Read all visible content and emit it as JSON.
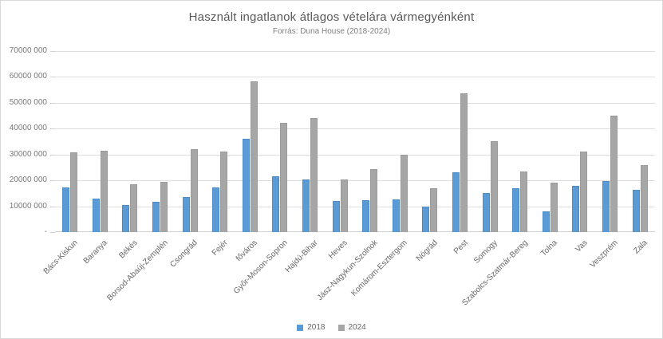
{
  "chart_data": {
    "type": "bar",
    "title": "Használt ingatlanok átlagos vételára vármegyénként",
    "subtitle": "Forrás: Duna House (2018-2024)",
    "categories": [
      "Bács-Kiskun",
      "Baranya",
      "Békés",
      "Borsod-Abaúj-Zemplén",
      "Csongrád",
      "Fejér",
      "főváros",
      "Győr-Moson-Sopron",
      "Hajdú-Bihar",
      "Heves",
      "Jász-Nagykun-Szolnok",
      "Komárom-Esztergom",
      "Nógrád",
      "Pest",
      "Somogy",
      "Szabolcs-Szatmár-Bereg",
      "Tolna",
      "Vas",
      "Veszprém",
      "Zala"
    ],
    "series": [
      {
        "name": "2018",
        "color": "#5b9bd5",
        "values": [
          17200000,
          13000000,
          10400000,
          11700000,
          13700000,
          17300000,
          36000000,
          21500000,
          20400000,
          11900000,
          12200000,
          12700000,
          10000000,
          23200000,
          15200000,
          16900000,
          8000000,
          18000000,
          19800000,
          16200000
        ]
      },
      {
        "name": "2024",
        "color": "#a6a6a6",
        "values": [
          30800000,
          31500000,
          18500000,
          19400000,
          32200000,
          31200000,
          58200000,
          42400000,
          44100000,
          20300000,
          24500000,
          30000000,
          17000000,
          53600000,
          35200000,
          23300000,
          19000000,
          31200000,
          45000000,
          26000000
        ]
      }
    ],
    "ylim": [
      0,
      70000000
    ],
    "ytick_step": 10000000,
    "ytick_labels": [
      "-",
      "10000 000",
      "20000 000",
      "30000 000",
      "40000 000",
      "50000 000",
      "60000 000",
      "70000 000"
    ],
    "grid": true,
    "legend_position": "bottom",
    "colors": {
      "gridline": "#d9d9d9",
      "title_text": "#595959",
      "axis_text": "#666666"
    }
  }
}
